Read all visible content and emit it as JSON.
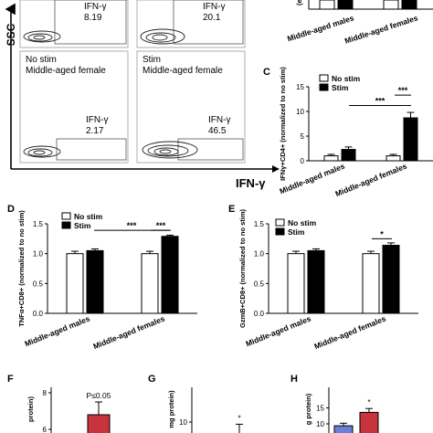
{
  "flow": {
    "ssc_label": "SSC",
    "ifng_label": "IFN-γ",
    "panels": [
      {
        "gate": "IFN-γ",
        "value": "8.19",
        "cond": "",
        "group": ""
      },
      {
        "gate": "IFN-γ",
        "value": "20.1",
        "cond": "",
        "group": ""
      },
      {
        "gate": "IFN-γ",
        "value": "2.17",
        "cond": "No stim",
        "group": "Middle-aged female"
      },
      {
        "gate": "IFN-γ",
        "value": "46.5",
        "cond": "Stim",
        "group": "Middle-aged female"
      }
    ]
  },
  "panels": {
    "C": "C",
    "D": "D",
    "E": "E",
    "F": "F",
    "G": "G",
    "H": "H"
  },
  "legend": {
    "nostim": "No stim",
    "stim": "Stim"
  },
  "colors": {
    "nostim": "#ffffff",
    "stim": "#000000",
    "blue": "#6a7fd6",
    "red": "#c8343e"
  },
  "chart_data": [
    {
      "type": "bar",
      "panel": "top-right-partial",
      "categories": [
        "Middle-aged males",
        "Middle-aged females"
      ],
      "series": [
        {
          "name": "No stim",
          "values": [
            null,
            null
          ]
        },
        {
          "name": "Stim",
          "values": [
            null,
            null
          ]
        }
      ]
    },
    {
      "type": "bar",
      "panel": "C",
      "categories": [
        "Middle-aged males",
        "Middle-aged females"
      ],
      "series": [
        {
          "name": "No stim",
          "values": [
            1.0,
            1.0
          ],
          "errors": [
            0.3,
            0.3
          ]
        },
        {
          "name": "Stim",
          "values": [
            2.3,
            8.7
          ],
          "errors": [
            0.5,
            1.1
          ]
        }
      ],
      "ylabel": "IFNγ+CD4+ (normalized to no stim)",
      "ylim": [
        0,
        15
      ],
      "yticks": [
        "0",
        "5",
        "10",
        "15"
      ],
      "significance": [
        "***",
        "***"
      ]
    },
    {
      "type": "bar",
      "panel": "D",
      "categories": [
        "Middle-aged males",
        "Middle-aged females"
      ],
      "series": [
        {
          "name": "No stim",
          "values": [
            1.0,
            1.0
          ],
          "errors": [
            0.04,
            0.04
          ]
        },
        {
          "name": "Stim",
          "values": [
            1.05,
            1.29
          ],
          "errors": [
            0.03,
            0.02
          ]
        }
      ],
      "ylabel": "TNFα+CD8+ (normalized to no stim)",
      "ylim": [
        0,
        1.5
      ],
      "yticks": [
        "0.0",
        "0.5",
        "1.0",
        "1.5"
      ],
      "significance": [
        "***",
        "***"
      ]
    },
    {
      "type": "bar",
      "panel": "E",
      "categories": [
        "Middle-aged males",
        "Middle-aged females"
      ],
      "series": [
        {
          "name": "No stim",
          "values": [
            1.0,
            1.0
          ],
          "errors": [
            0.04,
            0.04
          ]
        },
        {
          "name": "Stim",
          "values": [
            1.05,
            1.14
          ],
          "errors": [
            0.03,
            0.04
          ]
        }
      ],
      "ylabel": "GzmB+CD8+ (normalized to no stim)",
      "ylim": [
        0,
        1.5
      ],
      "yticks": [
        "0.0",
        "0.5",
        "1.0",
        "1.5"
      ],
      "significance": [
        "*"
      ]
    },
    {
      "type": "bar",
      "panel": "F",
      "ylabel": "protein)",
      "yticks": [
        "8",
        "6"
      ],
      "annotation": "P≤0.05",
      "series": [
        {
          "name": "",
          "values": [
            6.8
          ],
          "errors": [
            0.7
          ]
        }
      ]
    },
    {
      "type": "bar",
      "panel": "G",
      "ylabel": "mg protein)",
      "yticks": [
        "10"
      ],
      "annotation": "*",
      "series": [
        {
          "name": "",
          "values": [
            8.8
          ],
          "errors": [
            1.0
          ]
        }
      ]
    },
    {
      "type": "bar",
      "panel": "H",
      "ylabel": "g protein)",
      "yticks": [
        "15",
        "10"
      ],
      "annotation": "*",
      "series": [
        {
          "name": "",
          "values": [
            9.4,
            13.6
          ],
          "errors": [
            0.8,
            1.2
          ]
        }
      ]
    }
  ]
}
